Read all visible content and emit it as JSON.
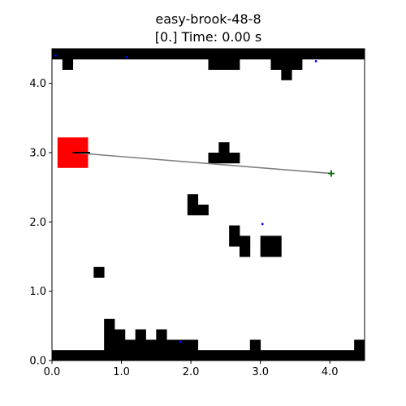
{
  "header": {
    "title": "easy-brook-48-8",
    "subtitle": "[0.] Time: 0.00 s"
  },
  "colors": {
    "obstacle": "#000000",
    "goal_box": "#ff0000",
    "path": "#808080",
    "target_marker": "#006400",
    "dot": "#0000ff",
    "heading": "#000000",
    "axes": "#000000"
  },
  "chart_data": {
    "type": "scatter",
    "title": "easy-brook-48-8",
    "subtitle": "[0.] Time: 0.00 s",
    "xlabel": "",
    "ylabel": "",
    "xlim": [
      0,
      4.5
    ],
    "ylim": [
      0,
      4.5
    ],
    "xticks": [
      "0.0",
      "1.0",
      "2.0",
      "3.0",
      "4.0"
    ],
    "yticks": [
      "0.0",
      "1.0",
      "2.0",
      "3.0",
      "4.0"
    ],
    "grid": false,
    "cell_size": 0.15,
    "obstacle_cells": [
      [
        0,
        0
      ],
      [
        1,
        0
      ],
      [
        2,
        0
      ],
      [
        3,
        0
      ],
      [
        4,
        0
      ],
      [
        5,
        0
      ],
      [
        6,
        0
      ],
      [
        7,
        0
      ],
      [
        8,
        0
      ],
      [
        9,
        0
      ],
      [
        10,
        0
      ],
      [
        11,
        0
      ],
      [
        12,
        0
      ],
      [
        13,
        0
      ],
      [
        14,
        0
      ],
      [
        15,
        0
      ],
      [
        16,
        0
      ],
      [
        17,
        0
      ],
      [
        18,
        0
      ],
      [
        19,
        0
      ],
      [
        20,
        0
      ],
      [
        21,
        0
      ],
      [
        22,
        0
      ],
      [
        23,
        0
      ],
      [
        24,
        0
      ],
      [
        25,
        0
      ],
      [
        26,
        0
      ],
      [
        27,
        0
      ],
      [
        28,
        0
      ],
      [
        29,
        0
      ],
      [
        0,
        29
      ],
      [
        1,
        29
      ],
      [
        2,
        29
      ],
      [
        3,
        29
      ],
      [
        4,
        29
      ],
      [
        5,
        29
      ],
      [
        6,
        29
      ],
      [
        7,
        29
      ],
      [
        8,
        29
      ],
      [
        9,
        29
      ],
      [
        10,
        29
      ],
      [
        11,
        29
      ],
      [
        12,
        29
      ],
      [
        13,
        29
      ],
      [
        14,
        29
      ],
      [
        15,
        29
      ],
      [
        16,
        29
      ],
      [
        17,
        29
      ],
      [
        18,
        29
      ],
      [
        19,
        29
      ],
      [
        20,
        29
      ],
      [
        21,
        29
      ],
      [
        22,
        29
      ],
      [
        23,
        29
      ],
      [
        24,
        29
      ],
      [
        25,
        29
      ],
      [
        26,
        29
      ],
      [
        27,
        29
      ],
      [
        28,
        29
      ],
      [
        29,
        29
      ],
      [
        1,
        28
      ],
      [
        15,
        28
      ],
      [
        16,
        28
      ],
      [
        17,
        28
      ],
      [
        21,
        28
      ],
      [
        22,
        28
      ],
      [
        23,
        28
      ],
      [
        22,
        27
      ],
      [
        16,
        20
      ],
      [
        15,
        19
      ],
      [
        16,
        19
      ],
      [
        17,
        19
      ],
      [
        13,
        15
      ],
      [
        13,
        14
      ],
      [
        14,
        14
      ],
      [
        17,
        12
      ],
      [
        17,
        11
      ],
      [
        18,
        11
      ],
      [
        18,
        10
      ],
      [
        20,
        11
      ],
      [
        20,
        10
      ],
      [
        21,
        10
      ],
      [
        21,
        11
      ],
      [
        4,
        8
      ],
      [
        5,
        1
      ],
      [
        6,
        1
      ],
      [
        7,
        1
      ],
      [
        8,
        1
      ],
      [
        9,
        1
      ],
      [
        10,
        1
      ],
      [
        11,
        1
      ],
      [
        12,
        1
      ],
      [
        13,
        1
      ],
      [
        19,
        1
      ],
      [
        29,
        1
      ],
      [
        5,
        2
      ],
      [
        6,
        2
      ],
      [
        8,
        2
      ],
      [
        10,
        2
      ],
      [
        5,
        3
      ]
    ],
    "goal_box": {
      "x": 0.08,
      "y": 2.78,
      "width": 0.44,
      "height": 0.44
    },
    "path": [
      [
        0.3,
        3.0
      ],
      [
        4.02,
        2.7
      ]
    ],
    "heading_segment": [
      [
        0.3,
        3.0
      ],
      [
        0.55,
        3.0
      ]
    ],
    "target_marker": {
      "x": 4.02,
      "y": 2.7,
      "symbol": "+"
    },
    "dots": [
      [
        0.05,
        4.4
      ],
      [
        1.07,
        4.38
      ],
      [
        3.8,
        4.32
      ],
      [
        3.03,
        1.97
      ],
      [
        1.85,
        0.27
      ]
    ]
  }
}
